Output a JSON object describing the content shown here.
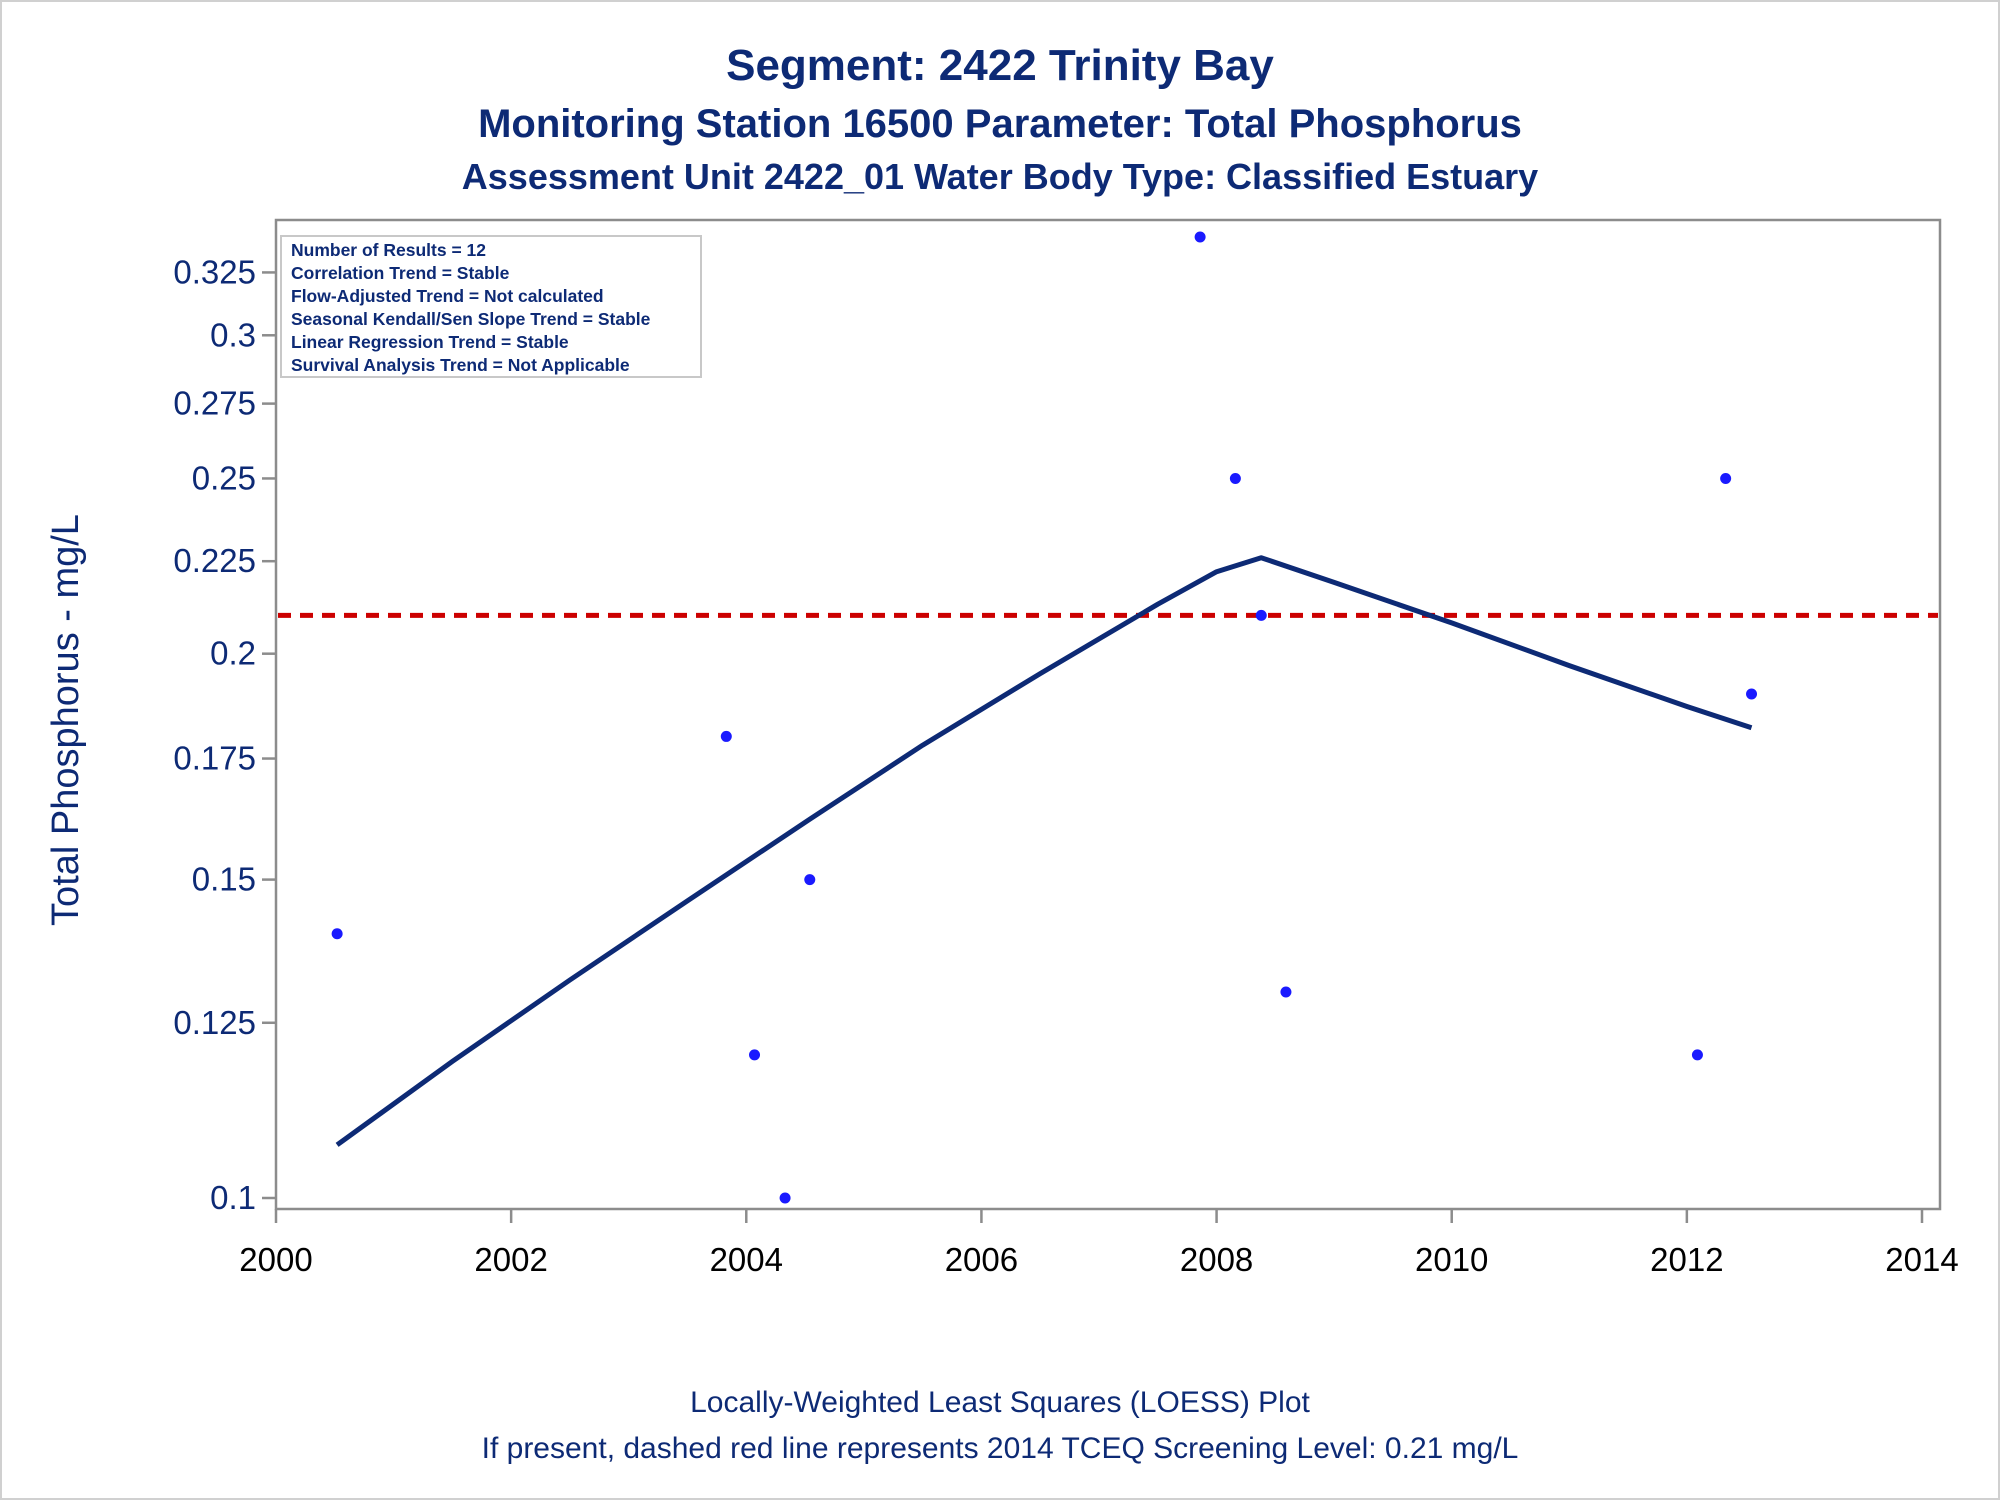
{
  "titles": {
    "line1": "Segment: 2422  Trinity Bay",
    "line2": "Monitoring Station 16500 Parameter: Total Phosphorus",
    "line3": "Assessment Unit 2422_01   Water Body Type: Classified Estuary"
  },
  "stats_box": [
    "Number of Results = 12",
    "Correlation Trend = Stable",
    "Flow-Adjusted Trend = Not calculated",
    "Seasonal Kendall/Sen Slope Trend = Stable",
    "Linear Regression Trend = Stable",
    "Survival Analysis Trend = Not Applicable"
  ],
  "footnotes": {
    "line1": "Locally-Weighted Least Squares (LOESS) Plot",
    "line2": "If present, dashed red line represents 2014 TCEQ Screening Level: 0.21 mg/L"
  },
  "colors": {
    "text": "#0d2a75",
    "points": "#1a1aff",
    "loess": "#0d2a75",
    "screening": "#cc0000",
    "axis": "#8c8c8c"
  },
  "chart_data": {
    "type": "scatter",
    "xlabel": "",
    "ylabel": "Total Phosphorus - mg/L",
    "xlim": [
      2000,
      2014
    ],
    "ylim": [
      0.1,
      0.34
    ],
    "y_scale": "log",
    "x_ticks": [
      2000,
      2002,
      2004,
      2006,
      2008,
      2010,
      2012,
      2014
    ],
    "x_tick_labels": [
      "2000",
      "2002",
      "2004",
      "2006",
      "2008",
      "2010",
      "2012",
      "2014"
    ],
    "y_ticks": [
      0.1,
      0.125,
      0.15,
      0.175,
      0.2,
      0.225,
      0.25,
      0.275,
      0.3,
      0.325
    ],
    "y_tick_labels": [
      "0.1",
      "0.125",
      "0.15",
      "0.175",
      "0.2",
      "0.225",
      "0.25",
      "0.275",
      "0.3",
      "0.325"
    ],
    "grid": false,
    "legend": "top-left",
    "series": [
      {
        "type": "scatter",
        "points": [
          {
            "x": 2000.52,
            "y": 0.14
          },
          {
            "x": 2003.83,
            "y": 0.18
          },
          {
            "x": 2004.07,
            "y": 0.12
          },
          {
            "x": 2004.33,
            "y": 0.1
          },
          {
            "x": 2004.54,
            "y": 0.15
          },
          {
            "x": 2007.86,
            "y": 0.34
          },
          {
            "x": 2008.16,
            "y": 0.25
          },
          {
            "x": 2008.38,
            "y": 0.21
          },
          {
            "x": 2008.59,
            "y": 0.13
          },
          {
            "x": 2012.09,
            "y": 0.12
          },
          {
            "x": 2012.33,
            "y": 0.25
          },
          {
            "x": 2012.55,
            "y": 0.19
          }
        ]
      },
      {
        "type": "line",
        "points": [
          {
            "x": 2000.52,
            "y": 0.107
          },
          {
            "x": 2001.5,
            "y": 0.119
          },
          {
            "x": 2002.5,
            "y": 0.132
          },
          {
            "x": 2003.5,
            "y": 0.146
          },
          {
            "x": 2004.54,
            "y": 0.162
          },
          {
            "x": 2005.5,
            "y": 0.178
          },
          {
            "x": 2006.5,
            "y": 0.195
          },
          {
            "x": 2007.5,
            "y": 0.213
          },
          {
            "x": 2008.0,
            "y": 0.222
          },
          {
            "x": 2008.38,
            "y": 0.226
          },
          {
            "x": 2009.0,
            "y": 0.219
          },
          {
            "x": 2010.0,
            "y": 0.208
          },
          {
            "x": 2011.0,
            "y": 0.197
          },
          {
            "x": 2012.0,
            "y": 0.187
          },
          {
            "x": 2012.55,
            "y": 0.182
          }
        ]
      }
    ],
    "reference_lines": [
      {
        "y": 0.21,
        "style": "dashed"
      }
    ]
  }
}
